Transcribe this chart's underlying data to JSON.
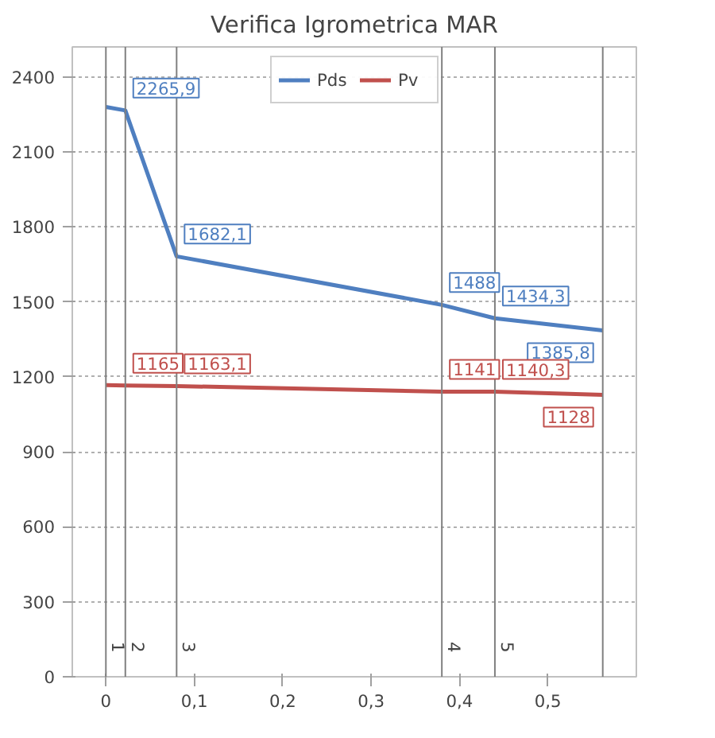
{
  "chart_data": {
    "type": "line",
    "title": "Verifica Igrometrica MAR",
    "x": [
      0,
      0.022,
      0.08,
      0.38,
      0.44,
      0.562
    ],
    "series": [
      {
        "name": "Pds",
        "color": "#4f7fc0",
        "values": [
          2280,
          2265.9,
          1682.1,
          1488,
          1434.3,
          1385.8
        ],
        "value_labels": [
          null,
          "2265,9",
          "1682,1",
          "1488",
          "1434,3",
          "1385,8"
        ]
      },
      {
        "name": "Pv",
        "color": "#c0504d",
        "values": [
          1167,
          1165,
          1163.1,
          1141,
          1140.3,
          1128
        ],
        "value_labels": [
          null,
          "1165",
          "1163,1",
          "1141",
          "1140,3",
          "1128"
        ]
      }
    ],
    "xlim": [
      -0.038,
      0.6
    ],
    "ylim": [
      0,
      2520
    ],
    "xticks": [
      0,
      {
        "value": 0.1,
        "label": "0,1"
      },
      {
        "value": 0.2,
        "label": "0,2"
      },
      {
        "value": 0.3,
        "label": "0,3"
      },
      {
        "value": 0.4,
        "label": "0,4"
      },
      {
        "value": 0.5,
        "label": "0,5"
      }
    ],
    "yticks": [
      0,
      300,
      600,
      900,
      1200,
      1500,
      1800,
      2100,
      2400
    ],
    "ref_lines": [
      {
        "axis": "x",
        "value": 0,
        "color": "#808080"
      },
      {
        "axis": "x",
        "value": 0.022,
        "color": "#808080"
      },
      {
        "axis": "x",
        "value": 0.08,
        "color": "#808080"
      },
      {
        "axis": "x",
        "value": 0.38,
        "color": "#808080"
      },
      {
        "axis": "x",
        "value": 0.44,
        "color": "#808080"
      },
      {
        "axis": "x",
        "value": 0.562,
        "color": "#808080"
      }
    ],
    "annotations": [
      {
        "text": "1",
        "x": 0,
        "y": 0
      },
      {
        "text": "2",
        "x": 0.022,
        "y": 0
      },
      {
        "text": "3",
        "x": 0.08,
        "y": 0
      },
      {
        "text": "4",
        "x": 0.38,
        "y": 0
      },
      {
        "text": "5",
        "x": 0.44,
        "y": 0
      }
    ],
    "grid": "y",
    "legend": "top",
    "marker": "none",
    "line_style": "solid"
  }
}
